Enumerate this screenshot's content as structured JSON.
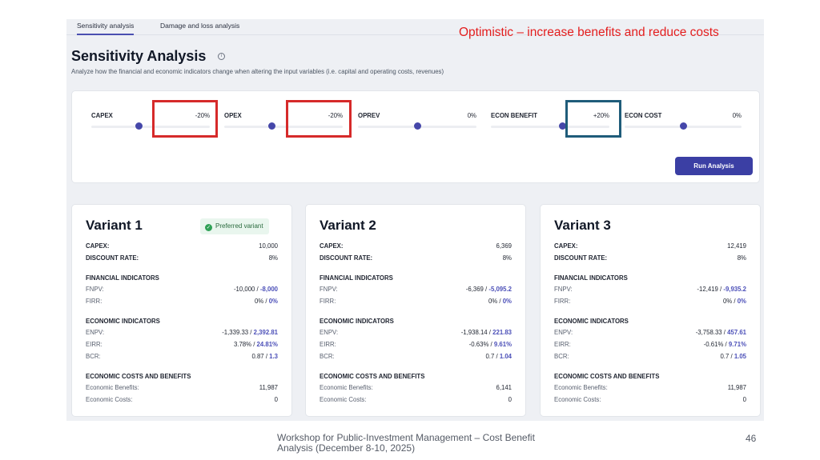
{
  "slide": {
    "caption": "Optimistic – increase benefits and reduce costs",
    "footer": "Workshop for Public-Investment Management – Cost Benefit Analysis (December 8-10, 2025)",
    "page_number": "46",
    "highlight_colors": {
      "red": "#d62a2a",
      "blue": "#1f5c7a"
    }
  },
  "app": {
    "tabs": [
      {
        "label": "Sensitivity analysis",
        "active": true
      },
      {
        "label": "Damage and loss analysis",
        "active": false
      }
    ],
    "title": "Sensitivity Analysis",
    "info_icon": "info-icon",
    "subtitle": "Analyze how the financial and economic indicators change when altering the input variables (i.e. capital and operating costs, revenues)",
    "accent_color": "#3b3fa4",
    "sliders": [
      {
        "label": "CAPEX",
        "value": "-20%",
        "level": 0.4
      },
      {
        "label": "OPEX",
        "value": "-20%",
        "level": 0.4
      },
      {
        "label": "OPREV",
        "value": "0%",
        "level": 0.5
      },
      {
        "label": "ECON BENEFIT",
        "value": "+20%",
        "level": 0.6
      },
      {
        "label": "ECON COST",
        "value": "0%",
        "level": 0.5
      }
    ],
    "run_button": "Run Analysis",
    "labels": {
      "capex": "CAPEX:",
      "discount_rate": "DISCOUNT RATE:",
      "financial_indicators": "FINANCIAL INDICATORS",
      "fnpv": "FNPV:",
      "firr": "FIRR:",
      "economic_indicators": "ECONOMIC INDICATORS",
      "enpv": "ENPV:",
      "eirr": "EIRR:",
      "bcr": "BCR:",
      "economic_costs_benefits": "ECONOMIC COSTS AND BENEFITS",
      "economic_benefits": "Economic Benefits:",
      "economic_costs": "Economic Costs:",
      "sep": " / "
    },
    "variants": [
      {
        "name": "Variant 1",
        "badge": "Preferred variant",
        "capex": "10,000",
        "discount_rate": "8%",
        "fnpv_base": "-10,000",
        "fnpv_new": "-8,000",
        "firr_base": "0%",
        "firr_new": "0%",
        "enpv_base": "-1,339.33",
        "enpv_new": "2,392.81",
        "eirr_base": "3.78%",
        "eirr_new": "24.81%",
        "bcr_base": "0.87",
        "bcr_new": "1.3",
        "economic_benefits": "11,987",
        "economic_costs": "0"
      },
      {
        "name": "Variant 2",
        "capex": "6,369",
        "discount_rate": "8%",
        "fnpv_base": "-6,369",
        "fnpv_new": "-5,095.2",
        "firr_base": "0%",
        "firr_new": "0%",
        "enpv_base": "-1,938.14",
        "enpv_new": "221.83",
        "eirr_base": "-0.63%",
        "eirr_new": "9.61%",
        "bcr_base": "0.7",
        "bcr_new": "1.04",
        "economic_benefits": "6,141",
        "economic_costs": "0"
      },
      {
        "name": "Variant 3",
        "capex": "12,419",
        "discount_rate": "8%",
        "fnpv_base": "-12,419",
        "fnpv_new": "-9,935.2",
        "firr_base": "0%",
        "firr_new": "0%",
        "enpv_base": "-3,758.33",
        "enpv_new": "457.61",
        "eirr_base": "-0.61%",
        "eirr_new": "9.71%",
        "bcr_base": "0.7",
        "bcr_new": "1.05",
        "economic_benefits": "11,987",
        "economic_costs": "0"
      }
    ]
  }
}
